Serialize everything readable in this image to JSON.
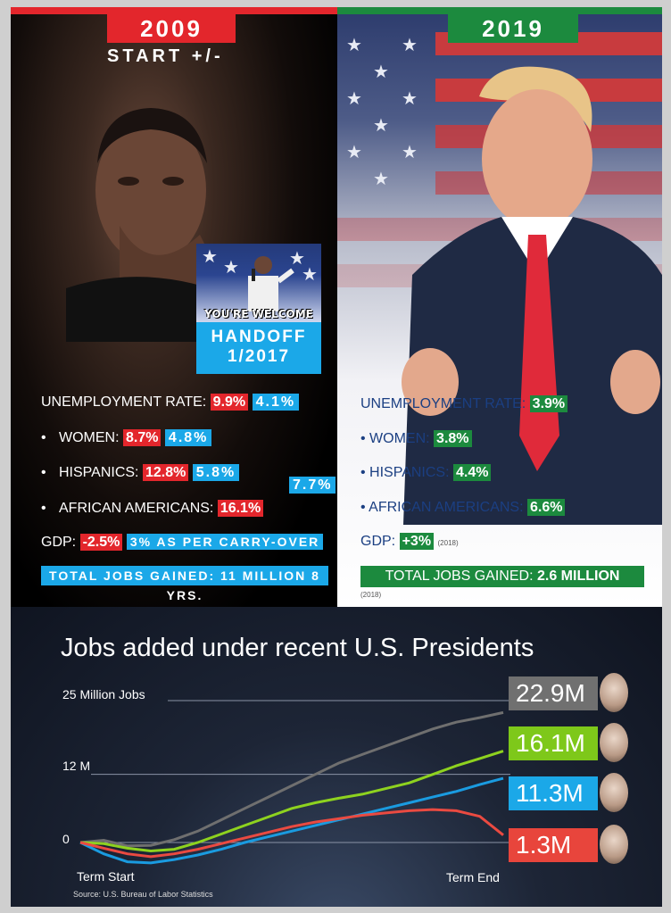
{
  "left": {
    "year": "2009",
    "start_label": "START +/-",
    "mini_photo_caption": "YOU'RE WELCOME",
    "handoff_line1": "HANDOFF",
    "handoff_line2": "1/2017",
    "unemployment_label": "UNEMPLOYMENT RATE:",
    "unemployment_start": "9.9%",
    "unemployment_end": "4.1%",
    "women_label": "WOMEN:",
    "women_start": "8.7%",
    "women_end": "4.8%",
    "hispanics_label": "HISPANICS:",
    "hispanics_start": "12.8%",
    "hispanics_end": "5.8%",
    "aa_label": "AFRICAN AMERICANS:",
    "aa_start": "16.1%",
    "aa_end": "7.7%",
    "gdp_label": "GDP:",
    "gdp_start": "-2.5%",
    "gdp_end": "3% AS PER CARRY-OVER",
    "jobs_gained": "TOTAL JOBS GAINED: 11 MILLION 8 YRS."
  },
  "right": {
    "year": "2019",
    "unemployment_label": "UNEMPLOYMENT RATE:",
    "unemployment": "3.9%",
    "women_label": "WOMEN:",
    "women": "3.8%",
    "hispanics_label": "HISPANICS:",
    "hispanics": "4.4%",
    "aa_label": "AFRICAN AMERICANS:",
    "aa": "6.6%",
    "gdp_label": "GDP:",
    "gdp": "+3%",
    "gdp_note": "(2018)",
    "jobs_label": "TOTAL JOBS GAINED:",
    "jobs_value": "2.6 MILLION",
    "jobs_note": "(2018)"
  },
  "chart_data": {
    "type": "line",
    "title": "Jobs added under recent U.S. Presidents",
    "y_ticks": [
      "25 Million Jobs",
      "12 M",
      "0"
    ],
    "x_labels": [
      "Term Start",
      "Term End"
    ],
    "source": "Source: U.S. Bureau of Labor Statistics",
    "series": [
      {
        "label": "22.9M",
        "color": "#6f6f6f",
        "box_color": "#707070",
        "end_value": 22.9,
        "values": [
          0,
          0.4,
          -0.6,
          -0.5,
          0.5,
          2,
          4,
          6,
          8,
          10,
          12,
          14,
          15.5,
          17,
          18.5,
          20,
          21.2,
          22,
          22.9
        ]
      },
      {
        "label": "16.1M",
        "color": "#8ed21f",
        "box_color": "#7ec81a",
        "end_value": 16.1,
        "values": [
          0,
          -0.2,
          -1,
          -1.5,
          -1.2,
          0,
          1.5,
          3,
          4.5,
          6,
          7,
          7.8,
          8.5,
          9.5,
          10.5,
          12,
          13.5,
          14.8,
          16.1
        ]
      },
      {
        "label": "11.3M",
        "color": "#1a9be0",
        "box_color": "#1ba8e8",
        "end_value": 11.3,
        "values": [
          0,
          -2,
          -3.4,
          -3.6,
          -3,
          -2.2,
          -1.2,
          0,
          1,
          2,
          3,
          4,
          5,
          6,
          7,
          8,
          9,
          10.2,
          11.3
        ]
      },
      {
        "label": "1.3M",
        "color": "#ea4a41",
        "box_color": "#e8453c",
        "end_value": 1.3,
        "values": [
          0,
          -1,
          -2,
          -2.5,
          -2,
          -1.2,
          -0.2,
          0.8,
          1.8,
          2.8,
          3.6,
          4.2,
          4.8,
          5.2,
          5.6,
          5.8,
          5.6,
          4.6,
          1.3
        ]
      }
    ],
    "ylim": [
      -4,
      26
    ]
  }
}
